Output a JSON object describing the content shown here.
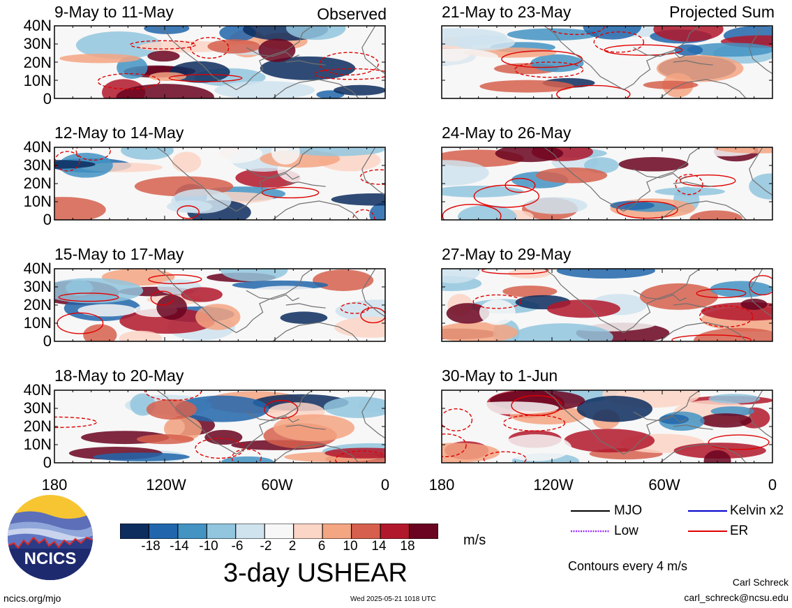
{
  "labels": {
    "observed": "Observed",
    "projected": "Projected Sum",
    "units": "m/s",
    "main_title": "3-day USHEAR",
    "contours_note": "Contours every 4 m/s",
    "author_name": "Carl Schreck",
    "author_email": "carl_schreck@ncsu.edu",
    "site": "ncics.org/mjo",
    "timestamp": "Wed 2025-05-21 1018 UTC",
    "logo_text": "NCICS"
  },
  "colors": {
    "strong_negative": "#0c2d5e",
    "weak_negative": "#cfe3ee",
    "neutral": "#f7f7f7",
    "weak_positive": "#fbd5c5",
    "strong_positive": "#6a0420",
    "er_contour": "#e00000",
    "land_outline": "#707070"
  },
  "chart_data": {
    "type": "heatmap",
    "variable": "3-day USHEAR",
    "units": "m/s",
    "lat_ticks": [
      "40N",
      "30N",
      "20N",
      "10N",
      "0"
    ],
    "lon_ticks": [
      "180",
      "120W",
      "60W",
      "0"
    ],
    "color_levels": [
      "-18",
      "-14",
      "-10",
      "-6",
      "-2",
      "2",
      "6",
      "10",
      "14",
      "18"
    ],
    "color_scale": [
      "#0c2d5e",
      "#2166ac",
      "#4393c3",
      "#92c5de",
      "#cfe3ee",
      "#f7f7f7",
      "#fbd5c5",
      "#f4a582",
      "#d6604d",
      "#b2182b",
      "#6a0420"
    ],
    "panels": [
      {
        "column": "observed",
        "period": "9-May to 11-May"
      },
      {
        "column": "observed",
        "period": "12-May to 14-May"
      },
      {
        "column": "observed",
        "period": "15-May to 17-May"
      },
      {
        "column": "observed",
        "period": "18-May to 20-May"
      },
      {
        "column": "projected",
        "period": "21-May to 23-May"
      },
      {
        "column": "projected",
        "period": "24-May to 26-May"
      },
      {
        "column": "projected",
        "period": "27-May to 29-May"
      },
      {
        "column": "projected",
        "period": "30-May to 1-Jun"
      }
    ],
    "legend": [
      {
        "name": "MJO",
        "color": "#000000",
        "style": "solid"
      },
      {
        "name": "Kelvin x2",
        "color": "#0000cc",
        "style": "solid"
      },
      {
        "name": "Low",
        "color": "#9b30ff",
        "style": "dotted"
      },
      {
        "name": "ER",
        "color": "#e00000",
        "style": "solid"
      }
    ]
  }
}
